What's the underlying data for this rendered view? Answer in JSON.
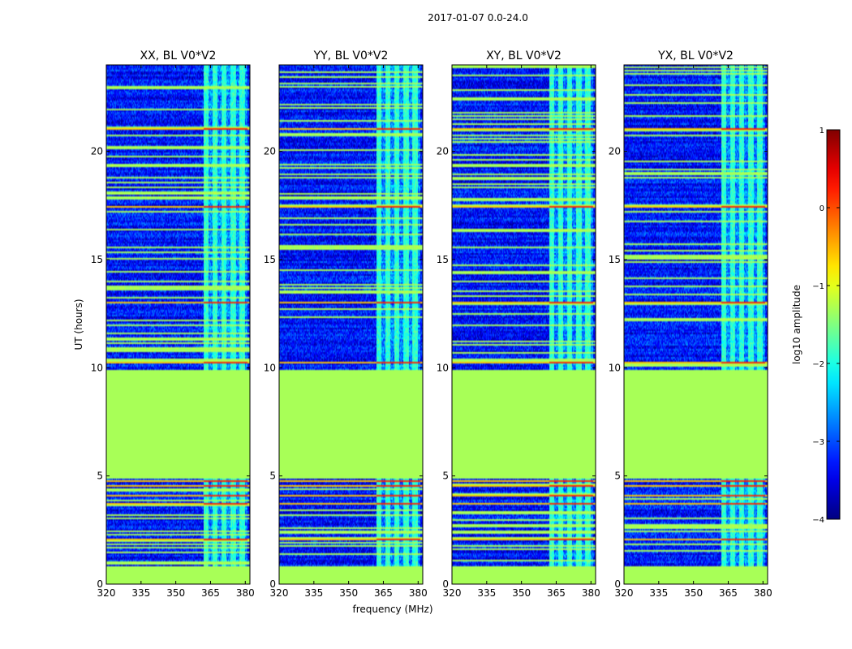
{
  "figure_title": "2017-01-07 0.0-24.0",
  "chart_data": {
    "type": "heatmap",
    "title": "2017-01-07 0.0-24.0",
    "xlabel": "frequency (MHz)",
    "ylabel": "UT (hours)",
    "xlim": [
      320,
      382
    ],
    "ylim": [
      0,
      24
    ],
    "x_ticks": [
      320,
      335,
      350,
      365,
      380
    ],
    "y_ticks": [
      0,
      5,
      10,
      15,
      20
    ],
    "colormap": "jet",
    "colorbar": {
      "label": "log10 amplitude",
      "range": [
        -4,
        1
      ],
      "ticks": [
        "1",
        "0",
        "−1",
        "−2",
        "−3",
        "−4"
      ],
      "tick_values": [
        1,
        0,
        -1,
        -2,
        -3,
        -4
      ]
    },
    "panels": [
      {
        "name": "XX",
        "title": "XX, BL V0*V2",
        "seed": 11
      },
      {
        "name": "YY",
        "title": "YY, BL V0*V2",
        "seed": 23
      },
      {
        "name": "XY",
        "title": "XY, BL V0*V2",
        "seed": 37
      },
      {
        "name": "YX",
        "title": "YX, BL V0*V2",
        "seed": 51
      }
    ],
    "flagged_time_ranges_hours": [
      [
        0.0,
        0.85
      ],
      [
        4.9,
        9.9
      ]
    ],
    "flagged_level_log10": -1.3,
    "background_level_log10": -3.3,
    "rfi_band_mhz": [
      362,
      381
    ],
    "rfi_level_log10": -1.9,
    "hot_time_hours": [
      2.05,
      3.7,
      4.1,
      4.5,
      4.75,
      4.9,
      10.2,
      13.0,
      17.4,
      21.0
    ]
  }
}
